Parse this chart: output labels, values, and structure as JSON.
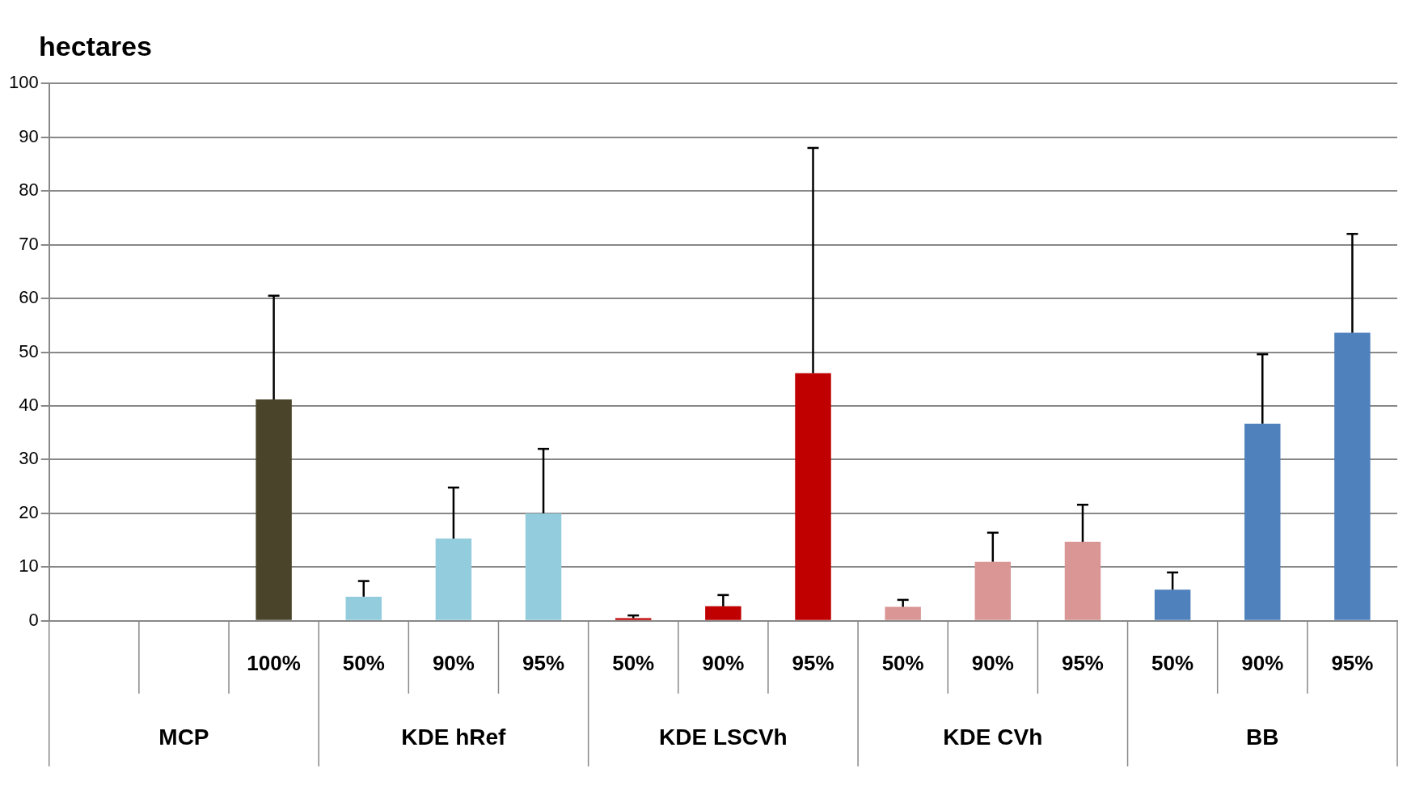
{
  "chart_data": {
    "type": "bar",
    "ylabel": "hectares",
    "categories": [
      null,
      null,
      "100%",
      "50%",
      "90%",
      "95%",
      "50%",
      "90%",
      "95%",
      "50%",
      "90%",
      "95%",
      "50%",
      "90%",
      "95%"
    ],
    "annotations": [
      "MCP",
      "KDE hRef",
      "KDE LSCVh",
      "KDE CVh",
      "BB"
    ],
    "values": [
      null,
      null,
      41.2,
      4.5,
      15.3,
      20,
      0.5,
      2.7,
      46.1,
      2.6,
      11,
      14.7,
      5.8,
      36.7,
      53.6
    ],
    "colors": [
      "#4a452a",
      "#4a452a",
      "#4a452a",
      "#93cddd",
      "#93cddd",
      "#93cddd",
      "#c00000",
      "#c00000",
      "#c00000",
      "#d99694",
      "#d99694",
      "#d99694",
      "#4f81bd",
      "#4f81bd",
      "#4f81bd"
    ],
    "errors": [
      null,
      null,
      [
        41.2,
        60.5
      ],
      [
        4.5,
        7.4
      ],
      [
        15.3,
        24.8
      ],
      [
        20,
        32
      ],
      [
        0.5,
        1
      ],
      [
        2.7,
        4.8
      ],
      [
        46.1,
        88
      ],
      [
        2.6,
        3.9
      ],
      [
        11,
        16.4
      ],
      [
        14.7,
        21.6
      ],
      [
        5.8,
        9
      ],
      [
        36.7,
        49.6
      ],
      [
        53.6,
        72
      ]
    ],
    "ylim": [
      0,
      100
    ],
    "yticks": [
      0,
      10,
      20,
      30,
      40,
      50,
      60,
      70,
      80,
      90,
      100
    ],
    "grid": "y",
    "legend": false
  }
}
